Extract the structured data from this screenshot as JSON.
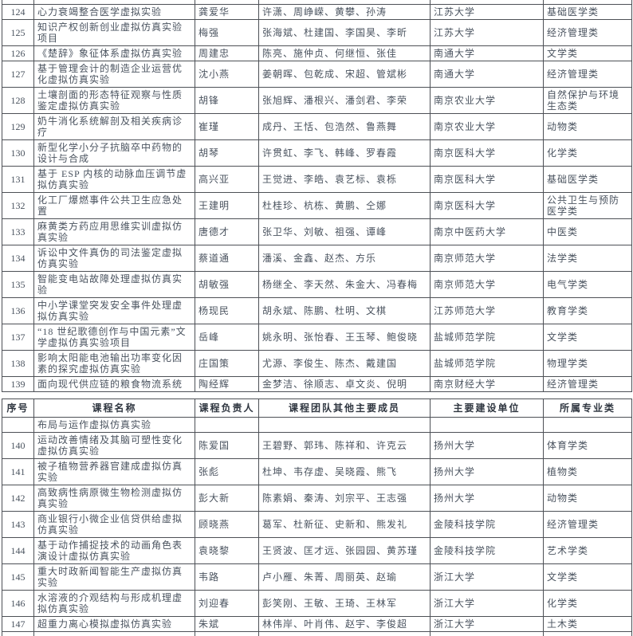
{
  "columns": [
    {
      "key": "num",
      "label": "序号"
    },
    {
      "key": "course",
      "label": "课程名称"
    },
    {
      "key": "leader",
      "label": "课程负责人"
    },
    {
      "key": "members",
      "label": "课程团队其他主要成员"
    },
    {
      "key": "unit",
      "label": "主要建设单位"
    },
    {
      "key": "category",
      "label": "所属专业类"
    }
  ],
  "upper_rows": [
    {
      "num": "124",
      "course": "心力衰竭整合医学虚拟实验",
      "leader": "龚爱华",
      "members": "许潇、周峥嵘、黄攀、孙涛",
      "unit": "江苏大学",
      "category": "基础医学类"
    },
    {
      "num": "125",
      "course": "知识产权创新创业虚拟仿真实验项目",
      "leader": "梅强",
      "members": "张海斌、杜建国、李国昊、李昕",
      "unit": "江苏大学",
      "category": "经济管理类"
    },
    {
      "num": "126",
      "course": "《楚辞》象征体系虚拟仿真实验",
      "leader": "周建忠",
      "members": "陈亮、施仲贞、何继恒、张佳",
      "unit": "南通大学",
      "category": "文学类"
    },
    {
      "num": "127",
      "course": "基于管理会计的制造企业运营优化虚拟仿真实验",
      "leader": "沈小燕",
      "members": "姜朝晖、包乾成、宋超、管斌彬",
      "unit": "南通大学",
      "category": "经济管理类"
    },
    {
      "num": "128",
      "course": "土壤剖面的形态特征观察与性质鉴定虚拟仿真实验",
      "leader": "胡锋",
      "members": "张旭辉、潘根兴、潘剑君、李荣",
      "unit": "南京农业大学",
      "category": "自然保护与环境生态类"
    },
    {
      "num": "129",
      "course": "奶牛消化系统解剖及相关疾病诊疗",
      "leader": "崔瑾",
      "members": "成丹、王恬、包浩然、鲁燕舞",
      "unit": "南京农业大学",
      "category": "动物类"
    },
    {
      "num": "130",
      "course": "新型化学小分子抗脑卒中药物的设计与合成",
      "leader": "胡琴",
      "members": "许贯虹、李飞、韩峰、罗春霞",
      "unit": "南京医科大学",
      "category": "化学类"
    },
    {
      "num": "131",
      "course": "基于 ESP 内核的动脉血压调节虚拟仿真实验",
      "leader": "高兴亚",
      "members": "王觉进、李皓、袁艺标、袁栎",
      "unit": "南京医科大学",
      "category": "基础医学类"
    },
    {
      "num": "132",
      "course": "化工厂爆燃事件公共卫生应急处置",
      "leader": "王建明",
      "members": "杜桂珍、杭栋、黄鹏、仝娜",
      "unit": "南京医科大学",
      "category": "公共卫生与预防医学类"
    },
    {
      "num": "133",
      "course": "麻黄类方药应用思维实训虚拟仿真实验",
      "leader": "唐德才",
      "members": "张卫华、刘敏、祖强、谭峰",
      "unit": "南京中医药大学",
      "category": "中医类"
    },
    {
      "num": "134",
      "course": "诉讼中文件真伪的司法鉴定虚拟仿真实验",
      "leader": "蔡道通",
      "members": "潘溪、金鑫、赵杰、方乐",
      "unit": "南京师范大学",
      "category": "法学类"
    },
    {
      "num": "135",
      "course": "智能变电站故障处理虚拟仿真实验",
      "leader": "胡敏强",
      "members": "杨继全、李天然、朱金大、冯春梅",
      "unit": "南京师范大学",
      "category": "电气学类"
    },
    {
      "num": "136",
      "course": "中小学课堂突发安全事件处理虚拟仿真实验",
      "leader": "杨现民",
      "members": "胡永斌、陈鹏、杜明、文棋",
      "unit": "江苏师范大学",
      "category": "教育学类"
    },
    {
      "num": "137",
      "course": "“18 世纪歌德创作与中国元素”文学虚拟仿真实验项目",
      "leader": "岳峰",
      "members": "姚永明、张怡春、王玉琴、鲍俊晓",
      "unit": "盐城师范学院",
      "category": "文学类"
    },
    {
      "num": "138",
      "course": "影响太阳能电池输出功率变化因素的探究虚拟仿真实验",
      "leader": "庄国策",
      "members": "尤源、李俊生、陈杰、戴建国",
      "unit": "盐城师范学院",
      "category": "物理学类"
    },
    {
      "num": "139",
      "course": "面向现代供应链的粮食物流系统",
      "leader": "陶经辉",
      "members": "金梦洁、徐顺志、卓文炎、倪明",
      "unit": "南京财经大学",
      "category": "经济管理类"
    }
  ],
  "lower_rows": [
    {
      "num": "",
      "course": "布局与运作虚拟仿真实验",
      "leader": "",
      "members": "",
      "unit": "",
      "category": ""
    },
    {
      "num": "140",
      "course": "运动改善情绪及其脑可塑性变化虚拟仿真实验",
      "leader": "陈爱国",
      "members": "王碧野、郭玮、陈祥和、许克云",
      "unit": "扬州大学",
      "category": "体育学类"
    },
    {
      "num": "141",
      "course": "被子植物营养器官建成虚拟仿真实验",
      "leader": "张彪",
      "members": "杜坤、韦存虚、吴晓霞、熊飞",
      "unit": "扬州大学",
      "category": "植物类"
    },
    {
      "num": "142",
      "course": "高致病性病原微生物检测虚拟仿真实验",
      "leader": "彭大新",
      "members": "陈素娟、秦涛、刘宗平、王志强",
      "unit": "扬州大学",
      "category": "动物类"
    },
    {
      "num": "143",
      "course": "商业银行小微企业信贷供给虚拟仿真实验",
      "leader": "顾晓燕",
      "members": "葛军、杜新征、史新和、熊发礼",
      "unit": "金陵科技学院",
      "category": "经济管理类"
    },
    {
      "num": "144",
      "course": "基于动作捕捉技术的动画角色表演设计虚拟仿真实验",
      "leader": "袁晓黎",
      "members": "王贤波、匡才远、张园园、黄苏瑾",
      "unit": "金陵科技学院",
      "category": "艺术学类"
    },
    {
      "num": "145",
      "course": "重大时政新闻智能生产虚拟仿真实验",
      "leader": "韦路",
      "members": "卢小雁、朱菁、周丽英、赵瑜",
      "unit": "浙江大学",
      "category": "文学类"
    },
    {
      "num": "146",
      "course": "水溶液的介观结构与形成机理虚拟仿真实验",
      "leader": "刘迎春",
      "members": "彭笑刚、王敏、王琦、王林军",
      "unit": "浙江大学",
      "category": "化学类"
    },
    {
      "num": "147",
      "course": "超重力离心模拟虚拟仿真实验",
      "leader": "朱斌",
      "members": "林伟岸、叶肖伟、赵宇、李俊超",
      "unit": "浙江大学",
      "category": "土木类"
    }
  ]
}
